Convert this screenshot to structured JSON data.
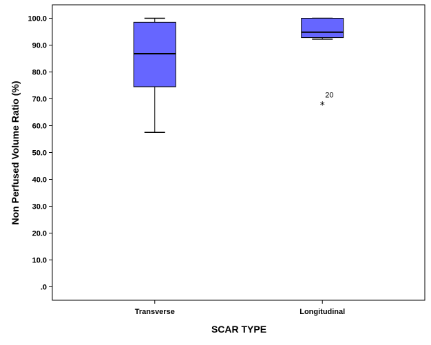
{
  "chart_data": {
    "type": "boxplot",
    "xlabel": "SCAR TYPE",
    "ylabel": "Non Perfused Volume Ratio (%)",
    "ylim": [
      -5,
      105
    ],
    "yticks": [
      0,
      10,
      20,
      30,
      40,
      50,
      60,
      70,
      80,
      90,
      100
    ],
    "ytick_labels": [
      ".0",
      "10.0",
      "20.0",
      "30.0",
      "40.0",
      "50.0",
      "60.0",
      "70.0",
      "80.0",
      "90.0",
      "100.0"
    ],
    "categories": [
      "Transverse",
      "Longitudinal"
    ],
    "box_color": "#6666ff",
    "boxes": [
      {
        "category": "Transverse",
        "min": 57.5,
        "q1": 74.5,
        "median": 86.8,
        "q3": 98.5,
        "max": 100.0
      },
      {
        "category": "Longitudinal",
        "min": 92.2,
        "q1": 92.8,
        "median": 94.8,
        "q3": 100.0,
        "max": 100.0
      }
    ],
    "outliers": [
      {
        "category": "Longitudinal",
        "value": 68.5,
        "label": "20",
        "marker": "*"
      }
    ],
    "grid": false
  }
}
